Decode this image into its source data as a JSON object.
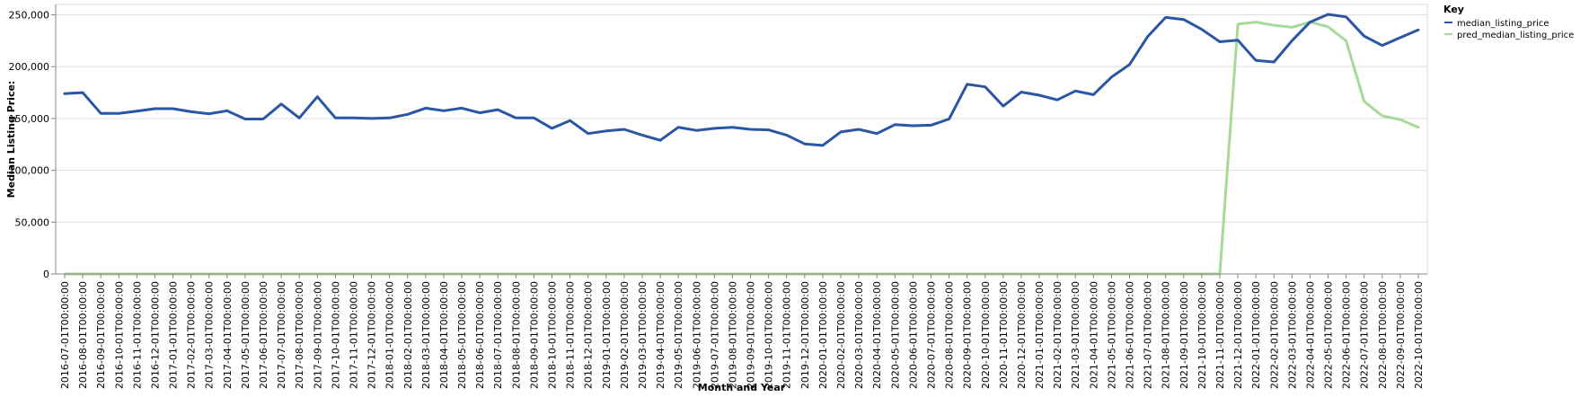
{
  "chart_data": {
    "type": "line",
    "title": "",
    "xlabel": "Month and Year",
    "ylabel": "Median Listing Price:",
    "ylim": [
      0,
      260000
    ],
    "yticks": [
      0,
      50000,
      100000,
      150000,
      200000,
      250000
    ],
    "ytick_labels": [
      "0",
      "50,000",
      "100,000",
      "150,000",
      "200,000",
      "250,000"
    ],
    "grid": true,
    "legend": {
      "title": "Key",
      "placement": "top-right"
    },
    "x": [
      "2016-07-01T00:00:00",
      "2016-08-01T00:00:00",
      "2016-09-01T00:00:00",
      "2016-10-01T00:00:00",
      "2016-11-01T00:00:00",
      "2016-12-01T00:00:00",
      "2017-01-01T00:00:00",
      "2017-02-01T00:00:00",
      "2017-03-01T00:00:00",
      "2017-04-01T00:00:00",
      "2017-05-01T00:00:00",
      "2017-06-01T00:00:00",
      "2017-07-01T00:00:00",
      "2017-08-01T00:00:00",
      "2017-09-01T00:00:00",
      "2017-10-01T00:00:00",
      "2017-11-01T00:00:00",
      "2017-12-01T00:00:00",
      "2018-01-01T00:00:00",
      "2018-02-01T00:00:00",
      "2018-03-01T00:00:00",
      "2018-04-01T00:00:00",
      "2018-05-01T00:00:00",
      "2018-06-01T00:00:00",
      "2018-07-01T00:00:00",
      "2018-08-01T00:00:00",
      "2018-09-01T00:00:00",
      "2018-10-01T00:00:00",
      "2018-11-01T00:00:00",
      "2018-12-01T00:00:00",
      "2019-01-01T00:00:00",
      "2019-02-01T00:00:00",
      "2019-03-01T00:00:00",
      "2019-04-01T00:00:00",
      "2019-05-01T00:00:00",
      "2019-06-01T00:00:00",
      "2019-07-01T00:00:00",
      "2019-08-01T00:00:00",
      "2019-09-01T00:00:00",
      "2019-10-01T00:00:00",
      "2019-11-01T00:00:00",
      "2019-12-01T00:00:00",
      "2020-01-01T00:00:00",
      "2020-02-01T00:00:00",
      "2020-03-01T00:00:00",
      "2020-04-01T00:00:00",
      "2020-05-01T00:00:00",
      "2020-06-01T00:00:00",
      "2020-07-01T00:00:00",
      "2020-08-01T00:00:00",
      "2020-09-01T00:00:00",
      "2020-10-01T00:00:00",
      "2020-11-01T00:00:00",
      "2020-12-01T00:00:00",
      "2021-01-01T00:00:00",
      "2021-02-01T00:00:00",
      "2021-03-01T00:00:00",
      "2021-04-01T00:00:00",
      "2021-05-01T00:00:00",
      "2021-06-01T00:00:00",
      "2021-07-01T00:00:00",
      "2021-08-01T00:00:00",
      "2021-09-01T00:00:00",
      "2021-10-01T00:00:00",
      "2021-11-01T00:00:00",
      "2021-12-01T00:00:00",
      "2022-01-01T00:00:00",
      "2022-02-01T00:00:00",
      "2022-03-01T00:00:00",
      "2022-04-01T00:00:00",
      "2022-05-01T00:00:00",
      "2022-06-01T00:00:00",
      "2022-07-01T00:00:00",
      "2022-08-01T00:00:00",
      "2022-09-01T00:00:00",
      "2022-10-01T00:00:00"
    ],
    "series": [
      {
        "name": "median_listing_price",
        "color": "#2a56a4",
        "values": [
          174000,
          175000,
          155000,
          155000,
          157000,
          159500,
          159500,
          156500,
          154500,
          157500,
          149500,
          149500,
          164000,
          150500,
          171000,
          150500,
          150500,
          150000,
          150500,
          154000,
          160000,
          157500,
          160000,
          155500,
          158500,
          150500,
          150500,
          140500,
          148000,
          135500,
          138000,
          139500,
          134000,
          129000,
          141500,
          138500,
          140500,
          141500,
          139500,
          139000,
          134000,
          125500,
          124000,
          137000,
          139500,
          135500,
          144000,
          143000,
          143500,
          149500,
          183000,
          180500,
          162000,
          175500,
          172500,
          168000,
          176500,
          173000,
          190000,
          202000,
          229000,
          247500,
          245500,
          236000,
          224000,
          225500,
          206000,
          204500,
          225000,
          243000,
          250500,
          248000,
          229500,
          220500,
          228000,
          235500
        ]
      },
      {
        "name": "pred_median_listing_price",
        "color": "#a6d99a",
        "values": [
          0,
          0,
          0,
          0,
          0,
          0,
          0,
          0,
          0,
          0,
          0,
          0,
          0,
          0,
          0,
          0,
          0,
          0,
          0,
          0,
          0,
          0,
          0,
          0,
          0,
          0,
          0,
          0,
          0,
          0,
          0,
          0,
          0,
          0,
          0,
          0,
          0,
          0,
          0,
          0,
          0,
          0,
          0,
          0,
          0,
          0,
          0,
          0,
          0,
          0,
          0,
          0,
          0,
          0,
          0,
          0,
          0,
          0,
          0,
          0,
          0,
          0,
          0,
          0,
          0,
          241000,
          243000,
          240000,
          238000,
          243000,
          238500,
          225000,
          166500,
          152500,
          149000,
          141500
        ]
      }
    ]
  }
}
